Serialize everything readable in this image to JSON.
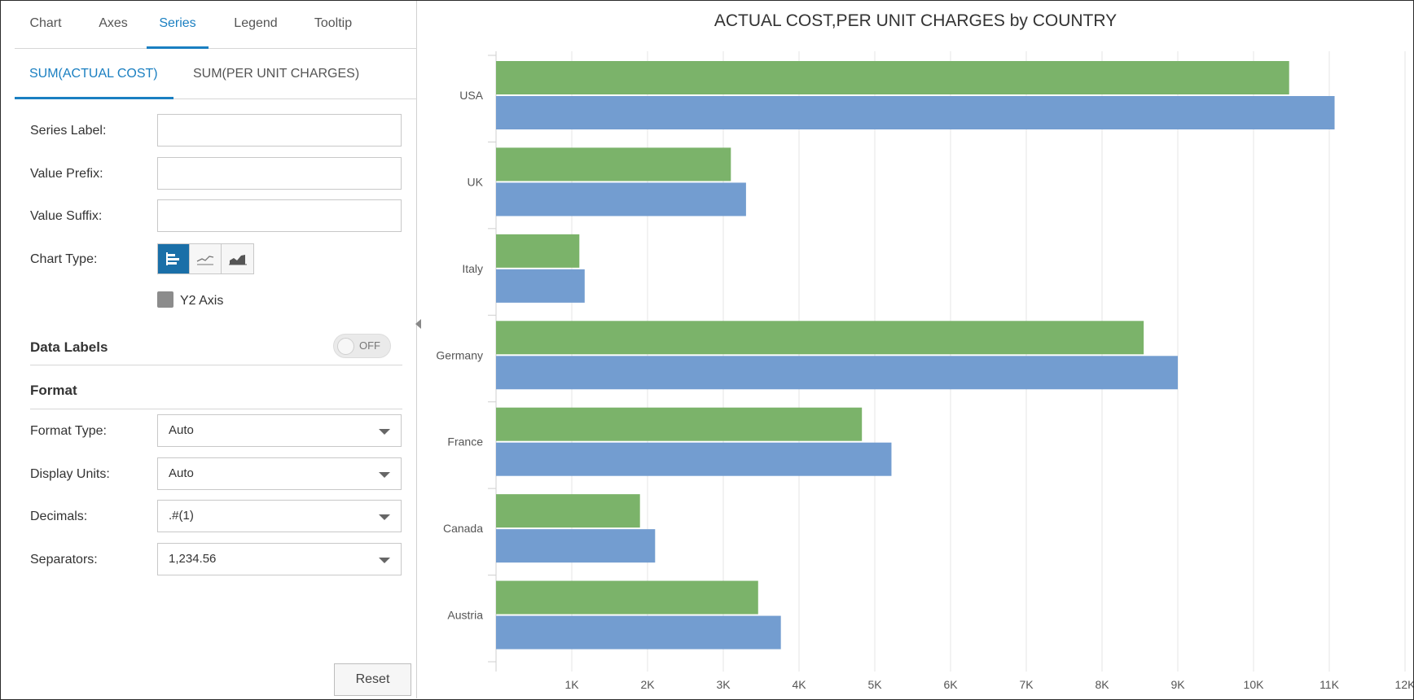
{
  "tabs": [
    {
      "label": "Chart",
      "active": false
    },
    {
      "label": "Axes",
      "active": false
    },
    {
      "label": "Series",
      "active": true
    },
    {
      "label": "Legend",
      "active": false
    },
    {
      "label": "Tooltip",
      "active": false
    }
  ],
  "subtabs": [
    {
      "label": "SUM(ACTUAL COST)",
      "active": true
    },
    {
      "label": "SUM(PER UNIT CHARGES)",
      "active": false
    }
  ],
  "fields": {
    "series_label": {
      "label": "Series Label:",
      "value": ""
    },
    "value_prefix": {
      "label": "Value Prefix:",
      "value": ""
    },
    "value_suffix": {
      "label": "Value Suffix:",
      "value": ""
    }
  },
  "chart_type": {
    "label": "Chart Type:",
    "options": [
      "bar-chart-icon",
      "line-chart-icon",
      "area-chart-icon"
    ],
    "selected": "bar-chart-icon"
  },
  "y2_axis": {
    "label": "Y2 Axis",
    "checked": false
  },
  "data_labels": {
    "title": "Data Labels",
    "toggle": "OFF"
  },
  "format": {
    "title": "Format",
    "format_type": {
      "label": "Format Type:",
      "value": "Auto"
    },
    "display_units": {
      "label": "Display Units:",
      "value": "Auto"
    },
    "decimals": {
      "label": "Decimals:",
      "value": ".#(1)"
    },
    "separators": {
      "label": "Separators:",
      "value": "1,234.56"
    }
  },
  "reset_label": "Reset",
  "colors": {
    "accent": "#1a7fc1",
    "series_green": "#7bb36a",
    "series_blue": "#739dd0"
  },
  "chart_data": {
    "type": "bar",
    "orientation": "horizontal",
    "title": "ACTUAL COST,PER UNIT CHARGES by COUNTRY",
    "categories": [
      "USA",
      "UK",
      "Italy",
      "Germany",
      "France",
      "Canada",
      "Austria"
    ],
    "series": [
      {
        "values": [
          10470,
          3100,
          1100,
          8550,
          4830,
          1900,
          3460
        ],
        "color": "#7bb36a"
      },
      {
        "values": [
          11070,
          3300,
          1170,
          9000,
          5220,
          2100,
          3760
        ],
        "color": "#739dd0"
      }
    ],
    "xlim": [
      0,
      12000
    ],
    "xticks": [
      1000,
      2000,
      3000,
      4000,
      5000,
      6000,
      7000,
      8000,
      9000,
      10000,
      11000,
      12000
    ],
    "xtick_labels": [
      "1K",
      "2K",
      "3K",
      "4K",
      "5K",
      "6K",
      "7K",
      "8K",
      "9K",
      "10K",
      "11K",
      "12K"
    ],
    "grid": true,
    "legend": "none"
  }
}
